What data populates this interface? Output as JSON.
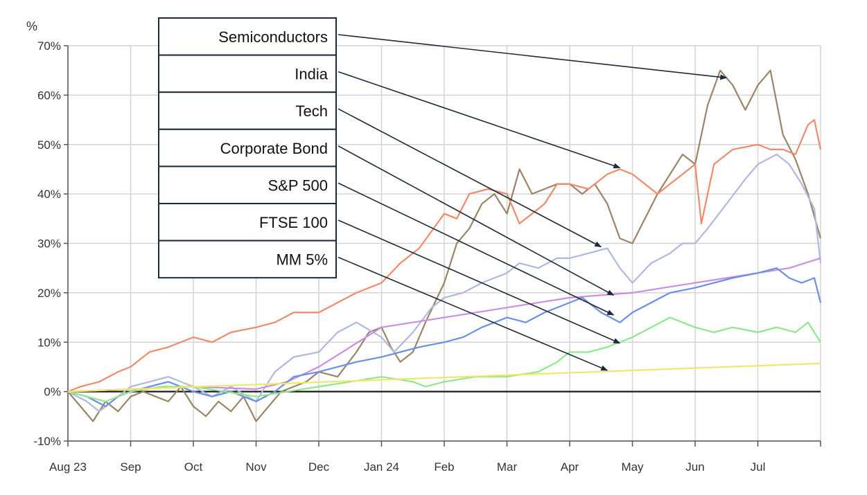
{
  "chart_data": {
    "type": "line",
    "ylabel": "%",
    "ylim": [
      -10,
      70
    ],
    "yticks": [
      -10,
      0,
      10,
      20,
      30,
      40,
      50,
      60,
      70
    ],
    "ytick_labels": [
      "-10%",
      "0%",
      "10%",
      "20%",
      "30%",
      "40%",
      "50%",
      "60%",
      "70%"
    ],
    "xlim": [
      0,
      12
    ],
    "xticks": [
      0,
      1,
      2,
      3,
      4,
      5,
      6,
      7,
      8,
      9,
      10,
      11,
      12
    ],
    "xtick_labels": [
      "Aug 23",
      "Sep",
      "Oct",
      "Nov",
      "Dec",
      "Jan 24",
      "Feb",
      "Mar",
      "Apr",
      "May",
      "Jun",
      "Jul",
      ""
    ],
    "grid": true,
    "baseline": 0,
    "series": [
      {
        "name": "Semiconductors",
        "color": "#9a8466",
        "points": [
          [
            0,
            0
          ],
          [
            0.2,
            -3
          ],
          [
            0.4,
            -6
          ],
          [
            0.6,
            -2
          ],
          [
            0.8,
            -4
          ],
          [
            1,
            -1
          ],
          [
            1.2,
            0
          ],
          [
            1.4,
            -1
          ],
          [
            1.6,
            -2
          ],
          [
            1.8,
            1
          ],
          [
            2,
            -3
          ],
          [
            2.2,
            -5
          ],
          [
            2.4,
            -2
          ],
          [
            2.6,
            -4
          ],
          [
            2.8,
            -1
          ],
          [
            3,
            -6
          ],
          [
            3.2,
            -3
          ],
          [
            3.4,
            0
          ],
          [
            3.6,
            1
          ],
          [
            3.8,
            2
          ],
          [
            4,
            4
          ],
          [
            4.3,
            3
          ],
          [
            4.6,
            8
          ],
          [
            4.8,
            12
          ],
          [
            5,
            13
          ],
          [
            5.15,
            9
          ],
          [
            5.3,
            6
          ],
          [
            5.5,
            8
          ],
          [
            5.7,
            14
          ],
          [
            5.85,
            18
          ],
          [
            6,
            22
          ],
          [
            6.2,
            30
          ],
          [
            6.4,
            33
          ],
          [
            6.6,
            38
          ],
          [
            6.8,
            40
          ],
          [
            7,
            36
          ],
          [
            7.2,
            45
          ],
          [
            7.4,
            40
          ],
          [
            7.6,
            41
          ],
          [
            7.8,
            42
          ],
          [
            8,
            42
          ],
          [
            8.2,
            40
          ],
          [
            8.4,
            42
          ],
          [
            8.6,
            38
          ],
          [
            8.8,
            31
          ],
          [
            9,
            30
          ],
          [
            9.2,
            35
          ],
          [
            9.4,
            40
          ],
          [
            9.6,
            44
          ],
          [
            9.8,
            48
          ],
          [
            10,
            46
          ],
          [
            10.2,
            58
          ],
          [
            10.4,
            65
          ],
          [
            10.6,
            62
          ],
          [
            10.8,
            57
          ],
          [
            11,
            62
          ],
          [
            11.2,
            65
          ],
          [
            11.4,
            52
          ],
          [
            11.6,
            47
          ],
          [
            11.8,
            40
          ],
          [
            12,
            31
          ]
        ]
      },
      {
        "name": "India",
        "color": "#f08a68",
        "points": [
          [
            0,
            0
          ],
          [
            0.2,
            1
          ],
          [
            0.5,
            2
          ],
          [
            0.8,
            4
          ],
          [
            1,
            5
          ],
          [
            1.3,
            8
          ],
          [
            1.6,
            9
          ],
          [
            2,
            11
          ],
          [
            2.3,
            10
          ],
          [
            2.6,
            12
          ],
          [
            3,
            13
          ],
          [
            3.3,
            14
          ],
          [
            3.6,
            16
          ],
          [
            4,
            16
          ],
          [
            4.3,
            18
          ],
          [
            4.6,
            20
          ],
          [
            5,
            22
          ],
          [
            5.3,
            26
          ],
          [
            5.6,
            29
          ],
          [
            6,
            36
          ],
          [
            6.2,
            35
          ],
          [
            6.4,
            40
          ],
          [
            6.7,
            41
          ],
          [
            7,
            40
          ],
          [
            7.2,
            34
          ],
          [
            7.4,
            36
          ],
          [
            7.6,
            38
          ],
          [
            7.8,
            42
          ],
          [
            8,
            42
          ],
          [
            8.3,
            41
          ],
          [
            8.6,
            44
          ],
          [
            8.8,
            45
          ],
          [
            9,
            44
          ],
          [
            9.2,
            42
          ],
          [
            9.4,
            40
          ],
          [
            9.6,
            42
          ],
          [
            9.8,
            44
          ],
          [
            10,
            46
          ],
          [
            10.1,
            34
          ],
          [
            10.3,
            46
          ],
          [
            10.6,
            49
          ],
          [
            11,
            50
          ],
          [
            11.2,
            49
          ],
          [
            11.4,
            49
          ],
          [
            11.6,
            48
          ],
          [
            11.8,
            54
          ],
          [
            11.9,
            55
          ],
          [
            12,
            49
          ]
        ]
      },
      {
        "name": "Tech",
        "color": "#b0b8e0",
        "points": [
          [
            0,
            0
          ],
          [
            0.3,
            -2
          ],
          [
            0.5,
            -4
          ],
          [
            0.8,
            -1
          ],
          [
            1,
            1
          ],
          [
            1.3,
            2
          ],
          [
            1.6,
            3
          ],
          [
            2,
            1
          ],
          [
            2.3,
            -1
          ],
          [
            2.6,
            1
          ],
          [
            3,
            -2
          ],
          [
            3.3,
            4
          ],
          [
            3.6,
            7
          ],
          [
            4,
            8
          ],
          [
            4.3,
            12
          ],
          [
            4.6,
            14
          ],
          [
            5,
            11
          ],
          [
            5.2,
            8
          ],
          [
            5.5,
            12
          ],
          [
            5.8,
            17
          ],
          [
            6,
            19
          ],
          [
            6.3,
            20
          ],
          [
            6.6,
            22
          ],
          [
            7,
            24
          ],
          [
            7.2,
            26
          ],
          [
            7.5,
            25
          ],
          [
            7.8,
            27
          ],
          [
            8,
            27
          ],
          [
            8.3,
            28
          ],
          [
            8.6,
            29
          ],
          [
            8.8,
            25
          ],
          [
            9,
            22
          ],
          [
            9.3,
            26
          ],
          [
            9.6,
            28
          ],
          [
            9.8,
            30
          ],
          [
            10,
            30
          ],
          [
            10.2,
            33
          ],
          [
            10.5,
            38
          ],
          [
            10.8,
            43
          ],
          [
            11,
            46
          ],
          [
            11.3,
            48
          ],
          [
            11.5,
            46
          ],
          [
            11.7,
            42
          ],
          [
            11.9,
            37
          ],
          [
            12,
            26
          ]
        ]
      },
      {
        "name": "Corporate Bond",
        "color": "#c98ee6",
        "points": [
          [
            0,
            0
          ],
          [
            1,
            0.5
          ],
          [
            2,
            1
          ],
          [
            3,
            0.5
          ],
          [
            3.5,
            2
          ],
          [
            4,
            5
          ],
          [
            4.5,
            9
          ],
          [
            5,
            13
          ],
          [
            5.5,
            14
          ],
          [
            6,
            15
          ],
          [
            6.5,
            16
          ],
          [
            7,
            17
          ],
          [
            7.5,
            18
          ],
          [
            8,
            19
          ],
          [
            8.5,
            19.5
          ],
          [
            9,
            20
          ],
          [
            9.5,
            21
          ],
          [
            10,
            22
          ],
          [
            10.5,
            23
          ],
          [
            11,
            24
          ],
          [
            11.5,
            25
          ],
          [
            12,
            27
          ]
        ]
      },
      {
        "name": "S&P 500",
        "color": "#6b8fe6",
        "points": [
          [
            0,
            0
          ],
          [
            0.3,
            -1
          ],
          [
            0.6,
            -3
          ],
          [
            0.8,
            -1
          ],
          [
            1,
            0
          ],
          [
            1.3,
            1
          ],
          [
            1.6,
            2
          ],
          [
            2,
            0
          ],
          [
            2.3,
            -1
          ],
          [
            2.6,
            0
          ],
          [
            3,
            -2
          ],
          [
            3.3,
            0
          ],
          [
            3.6,
            3
          ],
          [
            4,
            4
          ],
          [
            4.3,
            5
          ],
          [
            4.6,
            6
          ],
          [
            5,
            7
          ],
          [
            5.3,
            8
          ],
          [
            5.6,
            9
          ],
          [
            6,
            10
          ],
          [
            6.3,
            11
          ],
          [
            6.6,
            13
          ],
          [
            7,
            15
          ],
          [
            7.3,
            14
          ],
          [
            7.6,
            16
          ],
          [
            8,
            18
          ],
          [
            8.2,
            19
          ],
          [
            8.5,
            16
          ],
          [
            8.8,
            14
          ],
          [
            9,
            16
          ],
          [
            9.3,
            18
          ],
          [
            9.6,
            20
          ],
          [
            10,
            21
          ],
          [
            10.3,
            22
          ],
          [
            10.6,
            23
          ],
          [
            11,
            24
          ],
          [
            11.3,
            25
          ],
          [
            11.5,
            23
          ],
          [
            11.7,
            22
          ],
          [
            11.9,
            23
          ],
          [
            12,
            18
          ]
        ]
      },
      {
        "name": "FTSE 100",
        "color": "#8ee88a",
        "points": [
          [
            0,
            0
          ],
          [
            0.3,
            -1
          ],
          [
            0.6,
            -2
          ],
          [
            1,
            0
          ],
          [
            1.5,
            1
          ],
          [
            2,
            1
          ],
          [
            2.5,
            0
          ],
          [
            3,
            -1
          ],
          [
            3.5,
            0
          ],
          [
            4,
            1
          ],
          [
            4.5,
            2
          ],
          [
            5,
            3
          ],
          [
            5.5,
            2
          ],
          [
            5.7,
            1
          ],
          [
            6,
            2
          ],
          [
            6.5,
            3
          ],
          [
            7,
            3
          ],
          [
            7.5,
            4
          ],
          [
            7.8,
            6
          ],
          [
            8,
            8
          ],
          [
            8.3,
            8
          ],
          [
            8.6,
            9
          ],
          [
            9,
            11
          ],
          [
            9.3,
            13
          ],
          [
            9.6,
            15
          ],
          [
            10,
            13
          ],
          [
            10.3,
            12
          ],
          [
            10.6,
            13
          ],
          [
            11,
            12
          ],
          [
            11.3,
            13
          ],
          [
            11.6,
            12
          ],
          [
            11.8,
            14
          ],
          [
            12,
            10
          ]
        ]
      },
      {
        "name": "MM 5%",
        "color": "#f2e66a",
        "points": [
          [
            0,
            0
          ],
          [
            12,
            5.7
          ]
        ]
      }
    ],
    "legend": {
      "placement": "top-left",
      "entries": [
        "Semiconductors",
        "India",
        "Tech",
        "Corporate Bond",
        "S&P 500",
        "FTSE 100",
        "MM 5%"
      ],
      "pointers": [
        [
          10.5,
          63.5
        ],
        [
          8.8,
          45.3
        ],
        [
          8.5,
          29.3
        ],
        [
          8.7,
          19.5
        ],
        [
          8.7,
          15.5
        ],
        [
          8.8,
          9.8
        ],
        [
          8.6,
          4.3
        ]
      ]
    }
  }
}
